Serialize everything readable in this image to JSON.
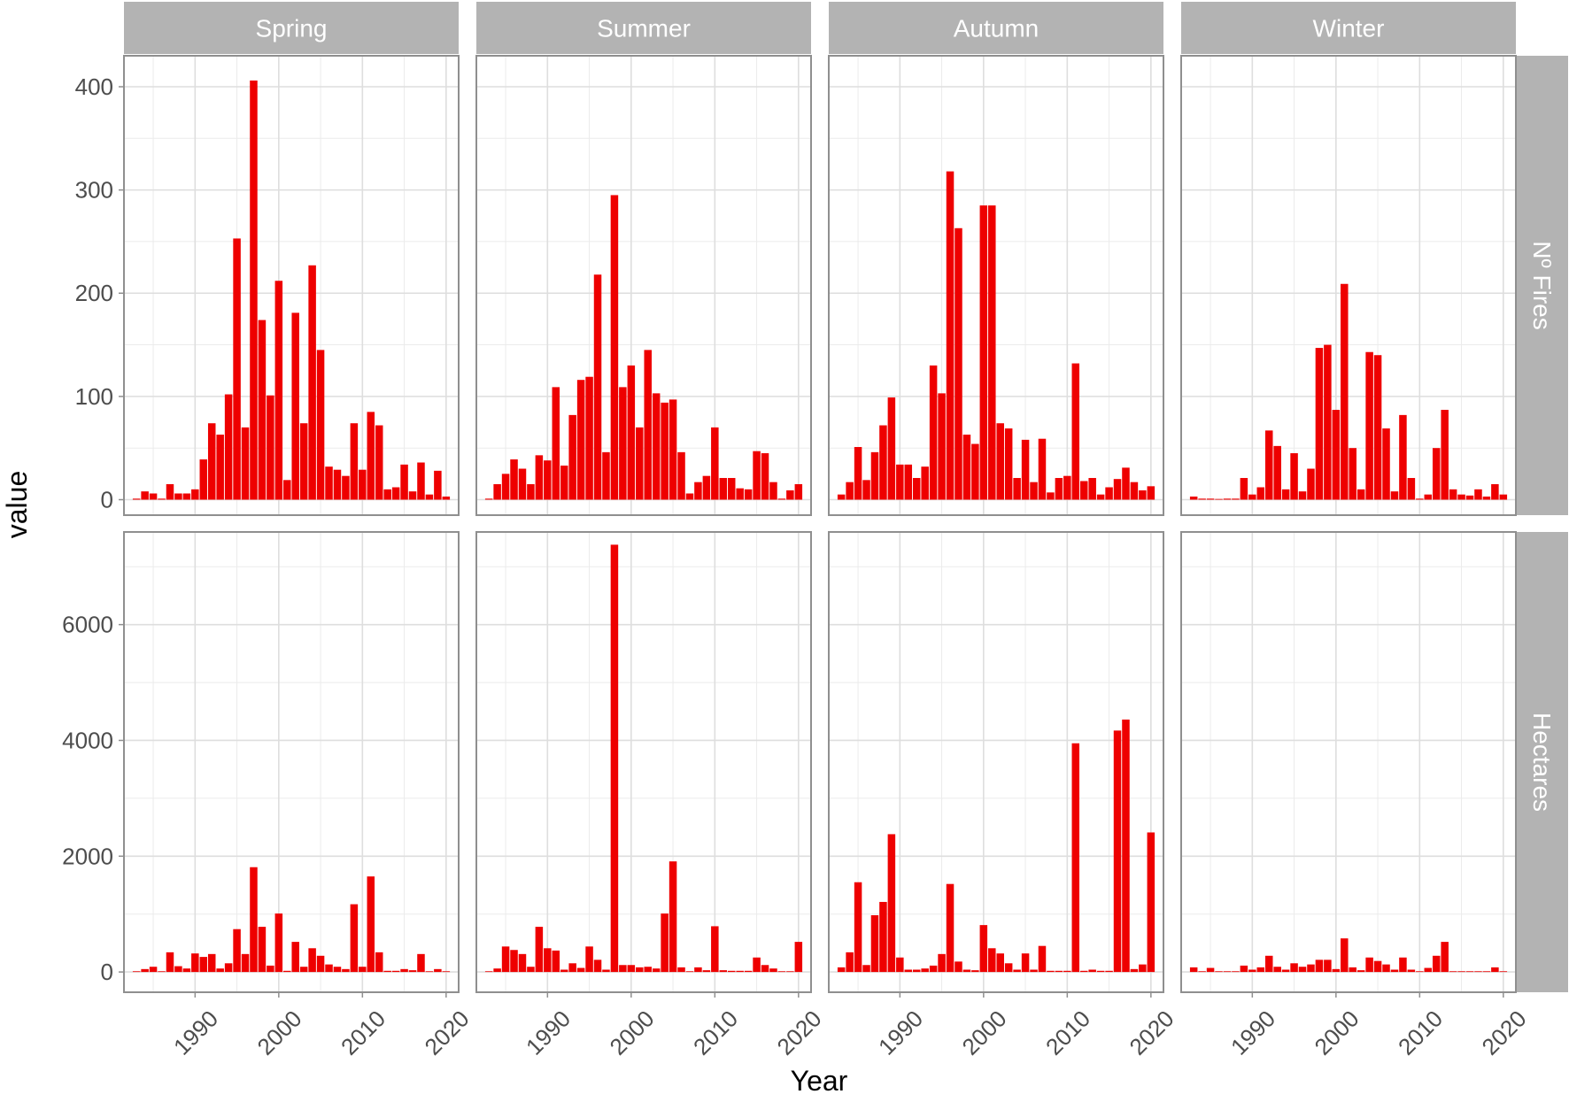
{
  "chart_data": {
    "type": "bar",
    "facet_columns": [
      "Spring",
      "Summer",
      "Autumn",
      "Winter"
    ],
    "facet_rows": [
      "Nº Fires",
      "Hectares"
    ],
    "xlabel": "Year",
    "ylabel": "value",
    "x_ticks": [
      1990,
      2000,
      2010,
      2020
    ],
    "xlim": [
      1981.5,
      2021.5
    ],
    "bar_color": "#ee0000",
    "grid": true,
    "rows": [
      {
        "name": "Nº Fires",
        "ylim": [
          -15,
          430
        ],
        "y_ticks": [
          0,
          100,
          200,
          300,
          400
        ],
        "panels": [
          {
            "season": "Spring",
            "years": [
              1983,
              1984,
              1985,
              1986,
              1987,
              1988,
              1989,
              1990,
              1991,
              1992,
              1993,
              1994,
              1995,
              1996,
              1997,
              1998,
              1999,
              2000,
              2001,
              2002,
              2003,
              2004,
              2005,
              2006,
              2007,
              2008,
              2009,
              2010,
              2011,
              2012,
              2013,
              2014,
              2015,
              2016,
              2017,
              2018,
              2019,
              2020
            ],
            "values": [
              1,
              8,
              6,
              1,
              15,
              6,
              6,
              10,
              39,
              74,
              63,
              102,
              253,
              70,
              406,
              174,
              101,
              212,
              19,
              181,
              74,
              227,
              145,
              32,
              29,
              23,
              74,
              29,
              85,
              72,
              10,
              12,
              34,
              8,
              36,
              5,
              28,
              3
            ]
          },
          {
            "season": "Summer",
            "years": [
              1983,
              1984,
              1985,
              1986,
              1987,
              1988,
              1989,
              1990,
              1991,
              1992,
              1993,
              1994,
              1995,
              1996,
              1997,
              1998,
              1999,
              2000,
              2001,
              2002,
              2003,
              2004,
              2005,
              2006,
              2007,
              2008,
              2009,
              2010,
              2011,
              2012,
              2013,
              2014,
              2015,
              2016,
              2017,
              2018,
              2019,
              2020
            ],
            "values": [
              1,
              15,
              25,
              39,
              30,
              15,
              43,
              38,
              109,
              33,
              82,
              116,
              119,
              218,
              46,
              295,
              109,
              130,
              70,
              145,
              103,
              94,
              97,
              46,
              6,
              17,
              23,
              70,
              21,
              21,
              11,
              10,
              47,
              45,
              17,
              1,
              9,
              15
            ]
          },
          {
            "season": "Autumn",
            "years": [
              1983,
              1984,
              1985,
              1986,
              1987,
              1988,
              1989,
              1990,
              1991,
              1992,
              1993,
              1994,
              1995,
              1996,
              1997,
              1998,
              1999,
              2000,
              2001,
              2002,
              2003,
              2004,
              2005,
              2006,
              2007,
              2008,
              2009,
              2010,
              2011,
              2012,
              2013,
              2014,
              2015,
              2016,
              2017,
              2018,
              2019,
              2020
            ],
            "values": [
              5,
              17,
              51,
              19,
              46,
              72,
              99,
              34,
              34,
              21,
              32,
              130,
              103,
              318,
              263,
              63,
              54,
              285,
              285,
              74,
              69,
              21,
              58,
              17,
              59,
              7,
              21,
              23,
              132,
              18,
              21,
              5,
              12,
              20,
              31,
              17,
              9,
              13
            ]
          },
          {
            "season": "Winter",
            "years": [
              1983,
              1984,
              1985,
              1986,
              1987,
              1988,
              1989,
              1990,
              1991,
              1992,
              1993,
              1994,
              1995,
              1996,
              1997,
              1998,
              1999,
              2000,
              2001,
              2002,
              2003,
              2004,
              2005,
              2006,
              2007,
              2008,
              2009,
              2010,
              2011,
              2012,
              2013,
              2014,
              2015,
              2016,
              2017,
              2018,
              2019,
              2020
            ],
            "values": [
              3,
              1,
              1,
              0,
              1,
              1,
              21,
              5,
              12,
              67,
              52,
              10,
              45,
              8,
              30,
              147,
              150,
              87,
              209,
              50,
              10,
              143,
              140,
              69,
              8,
              82,
              21,
              1,
              5,
              50,
              87,
              10,
              5,
              4,
              10,
              3,
              15,
              5
            ]
          }
        ]
      },
      {
        "name": "Hectares",
        "ylim": [
          -350,
          7600
        ],
        "y_ticks": [
          0,
          2000,
          4000,
          6000
        ],
        "panels": [
          {
            "season": "Spring",
            "years": [
              1983,
              1984,
              1985,
              1986,
              1987,
              1988,
              1989,
              1990,
              1991,
              1992,
              1993,
              1994,
              1995,
              1996,
              1997,
              1998,
              1999,
              2000,
              2001,
              2002,
              2003,
              2004,
              2005,
              2006,
              2007,
              2008,
              2009,
              2010,
              2011,
              2012,
              2013,
              2014,
              2015,
              2016,
              2017,
              2018,
              2019,
              2020
            ],
            "values": [
              10,
              50,
              90,
              5,
              340,
              100,
              60,
              320,
              260,
              310,
              60,
              150,
              740,
              310,
              1810,
              780,
              110,
              1010,
              20,
              520,
              90,
              410,
              280,
              130,
              90,
              50,
              1170,
              90,
              1650,
              340,
              20,
              20,
              50,
              30,
              310,
              5,
              50,
              10
            ]
          },
          {
            "season": "Summer",
            "years": [
              1983,
              1984,
              1985,
              1986,
              1987,
              1988,
              1989,
              1990,
              1991,
              1992,
              1993,
              1994,
              1995,
              1996,
              1997,
              1998,
              1999,
              2000,
              2001,
              2002,
              2003,
              2004,
              2005,
              2006,
              2007,
              2008,
              2009,
              2010,
              2011,
              2012,
              2013,
              2014,
              2015,
              2016,
              2017,
              2018,
              2019,
              2020
            ],
            "values": [
              10,
              60,
              440,
              380,
              310,
              90,
              780,
              410,
              370,
              40,
              150,
              70,
              440,
              210,
              40,
              7380,
              120,
              120,
              80,
              90,
              60,
              1010,
              1910,
              80,
              0,
              80,
              30,
              790,
              30,
              20,
              20,
              20,
              250,
              120,
              60,
              0,
              0,
              520
            ]
          },
          {
            "season": "Autumn",
            "years": [
              1983,
              1984,
              1985,
              1986,
              1987,
              1988,
              1989,
              1990,
              1991,
              1992,
              1993,
              1994,
              1995,
              1996,
              1997,
              1998,
              1999,
              2000,
              2001,
              2002,
              2003,
              2004,
              2005,
              2006,
              2007,
              2008,
              2009,
              2010,
              2011,
              2012,
              2013,
              2014,
              2015,
              2016,
              2017,
              2018,
              2019,
              2020
            ],
            "values": [
              80,
              340,
              1550,
              120,
              980,
              1210,
              2380,
              250,
              40,
              40,
              60,
              110,
              310,
              1520,
              180,
              40,
              30,
              810,
              410,
              320,
              150,
              40,
              320,
              40,
              450,
              20,
              20,
              20,
              3950,
              20,
              40,
              20,
              20,
              4170,
              4360,
              50,
              130,
              2410
            ]
          },
          {
            "season": "Winter",
            "years": [
              1983,
              1984,
              1985,
              1986,
              1987,
              1988,
              1989,
              1990,
              1991,
              1992,
              1993,
              1994,
              1995,
              1996,
              1997,
              1998,
              1999,
              2000,
              2001,
              2002,
              2003,
              2004,
              2005,
              2006,
              2007,
              2008,
              2009,
              2010,
              2011,
              2012,
              2013,
              2014,
              2015,
              2016,
              2017,
              2018,
              2019,
              2020
            ],
            "values": [
              80,
              10,
              70,
              0,
              0,
              0,
              110,
              40,
              80,
              280,
              90,
              40,
              150,
              90,
              130,
              210,
              210,
              50,
              580,
              80,
              30,
              250,
              190,
              130,
              40,
              250,
              40,
              10,
              70,
              280,
              520,
              10,
              10,
              10,
              10,
              10,
              80,
              10
            ]
          }
        ]
      }
    ]
  }
}
